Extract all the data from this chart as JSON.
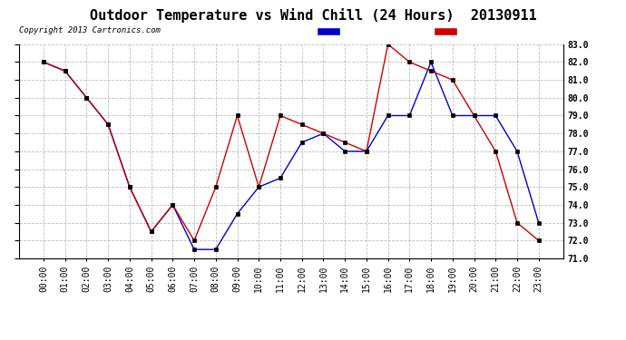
{
  "title": "Outdoor Temperature vs Wind Chill (24 Hours)  20130911",
  "copyright": "Copyright 2013 Cartronics.com",
  "background_color": "#ffffff",
  "plot_background": "#ffffff",
  "grid_color": "#aaaaaa",
  "hours": [
    "00:00",
    "01:00",
    "02:00",
    "03:00",
    "04:00",
    "05:00",
    "06:00",
    "07:00",
    "08:00",
    "09:00",
    "10:00",
    "11:00",
    "12:00",
    "13:00",
    "14:00",
    "15:00",
    "16:00",
    "17:00",
    "18:00",
    "19:00",
    "20:00",
    "21:00",
    "22:00",
    "23:00"
  ],
  "temperature": [
    82.0,
    81.5,
    80.0,
    78.5,
    75.0,
    72.5,
    74.0,
    72.0,
    75.0,
    79.0,
    75.0,
    79.0,
    78.5,
    78.0,
    77.5,
    77.0,
    83.0,
    82.0,
    81.5,
    81.0,
    79.0,
    77.0,
    73.0,
    72.0
  ],
  "wind_chill": [
    82.0,
    81.5,
    80.0,
    78.5,
    75.0,
    72.5,
    74.0,
    71.5,
    71.5,
    73.5,
    75.0,
    75.5,
    77.5,
    78.0,
    77.0,
    77.0,
    79.0,
    79.0,
    82.0,
    79.0,
    79.0,
    79.0,
    77.0,
    73.0
  ],
  "ylim_min": 71.0,
  "ylim_max": 83.0,
  "yticks": [
    71.0,
    72.0,
    73.0,
    74.0,
    75.0,
    76.0,
    77.0,
    78.0,
    79.0,
    80.0,
    81.0,
    82.0,
    83.0
  ],
  "temp_color": "#cc0000",
  "wind_color": "#0000cc",
  "legend_wind_bg": "#0000cc",
  "legend_temp_bg": "#cc0000",
  "title_fontsize": 11,
  "axis_fontsize": 7,
  "copyright_fontsize": 6.5,
  "legend_fontsize": 7.5
}
